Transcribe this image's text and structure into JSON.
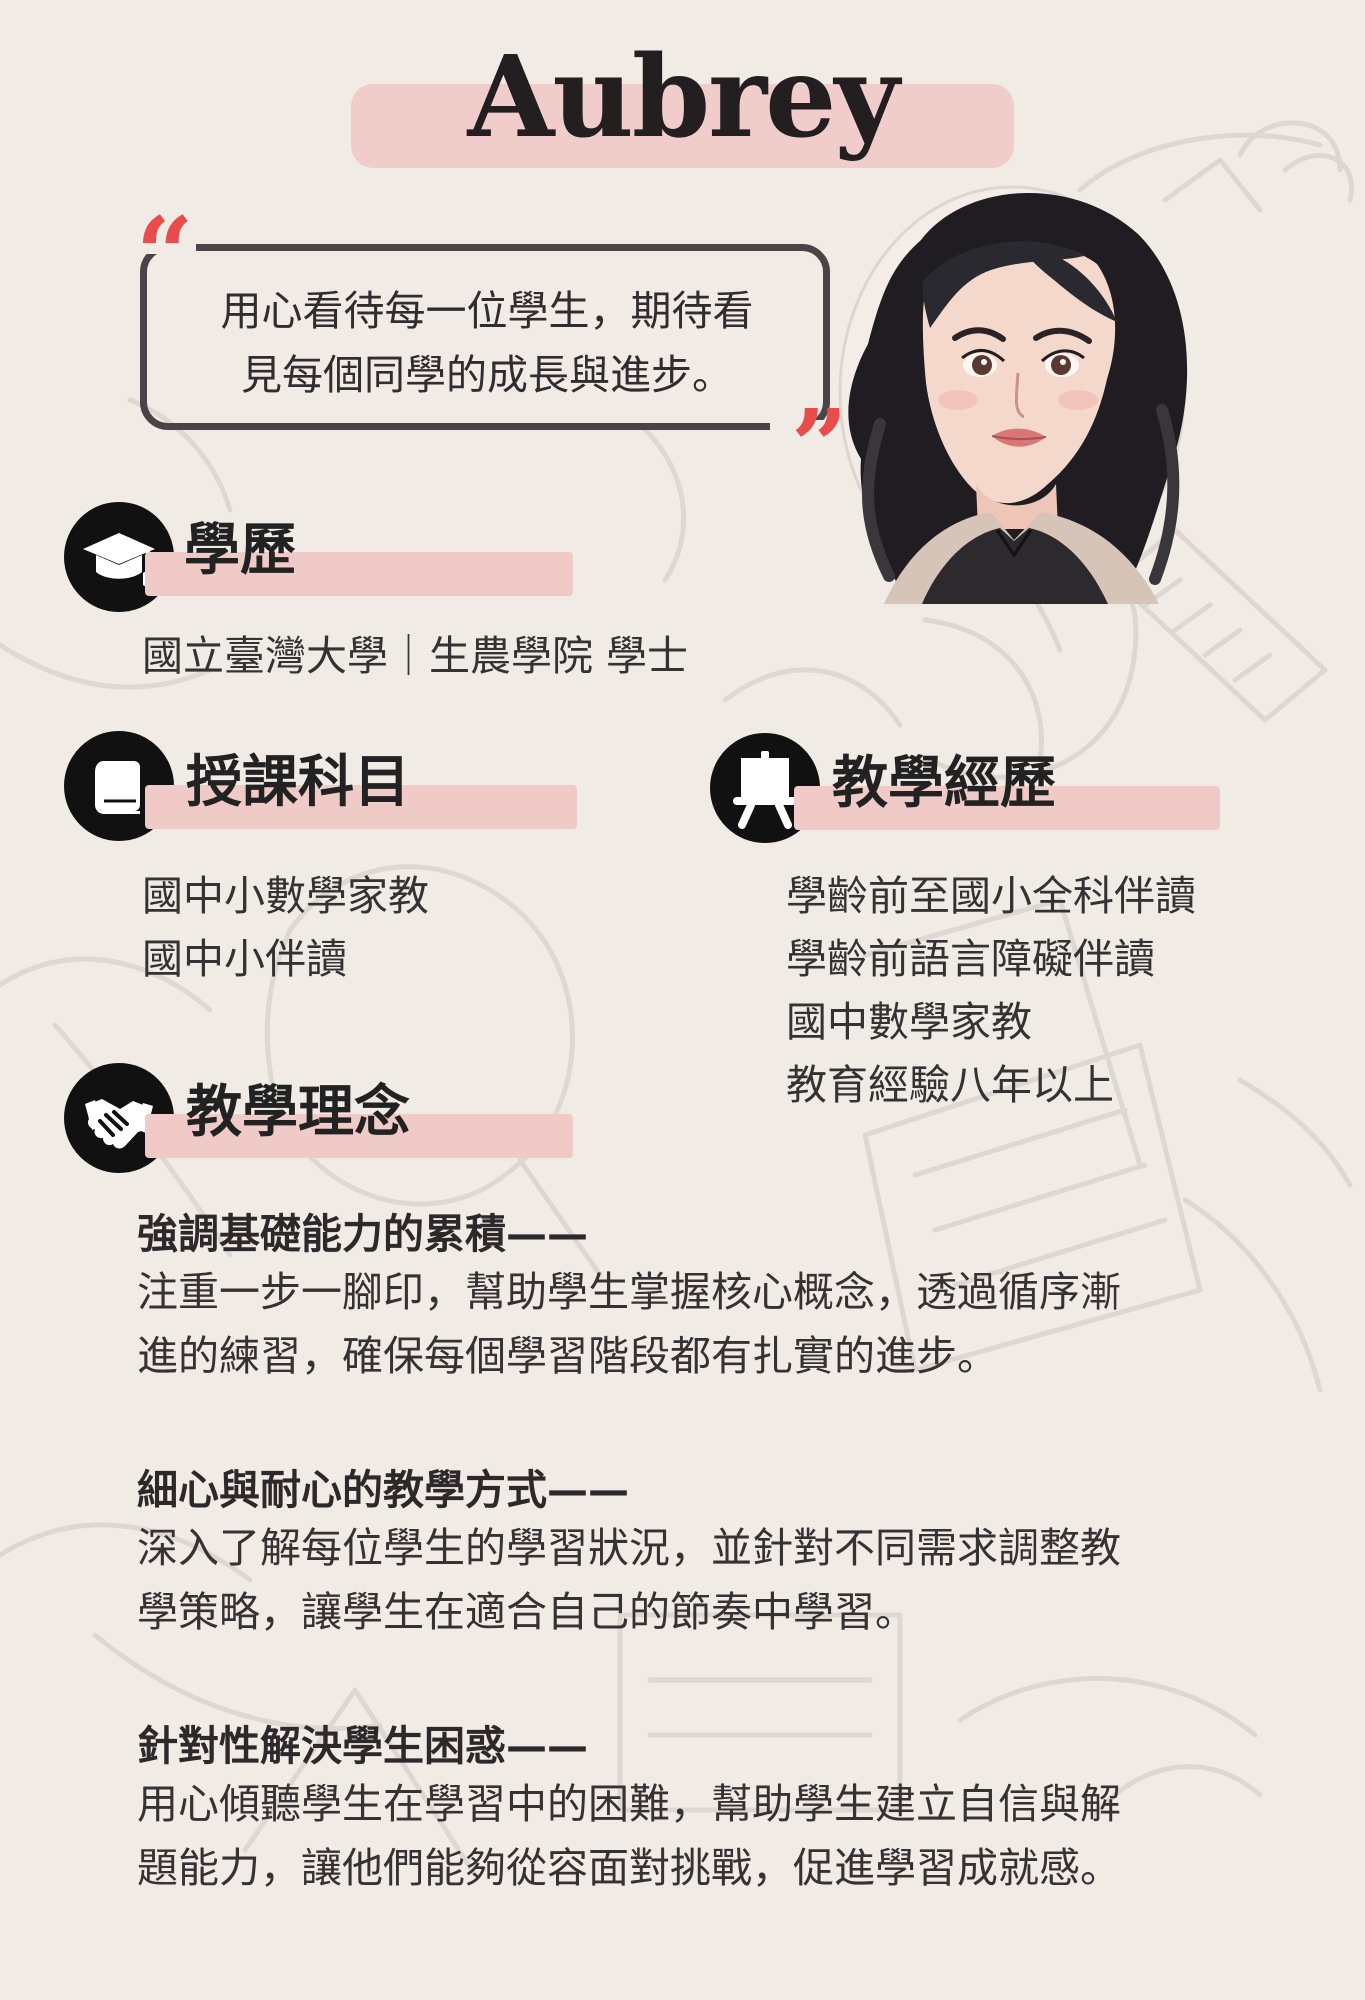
{
  "profile": {
    "name": "Aubrey",
    "quote": "用心看待每一位學生，期待看見每個同學的成長與進步。",
    "quote_lines": [
      "用心看待每一位學生，期待看",
      "見每個同學的成長與進步。"
    ],
    "quote_open": "“",
    "quote_close": "”"
  },
  "education": {
    "title": "學歷",
    "content": "國立臺灣大學｜生農學院 學士",
    "icon": "graduation-cap-icon"
  },
  "subjects": {
    "title": "授課科目",
    "items": [
      "國中小數學家教",
      "國中小伴讀"
    ],
    "icon": "book-icon"
  },
  "experience": {
    "title": "教學經歷",
    "items": [
      "學齡前至國小全科伴讀",
      "學齡前語言障礙伴讀",
      "國中數學家教",
      "教育經驗八年以上"
    ],
    "icon": "presentation-board-icon"
  },
  "philosophy": {
    "title": "教學理念",
    "icon": "handshake-icon",
    "blocks": [
      {
        "heading": "強調基礎能力的累積——",
        "lines": [
          "注重一步一腳印，幫助學生掌握核心概念，透過循序漸",
          "進的練習，確保每個學習階段都有扎實的進步。"
        ]
      },
      {
        "heading": "細心與耐心的教學方式——",
        "lines": [
          "深入了解每位學生的學習狀況，並針對不同需求調整教",
          "學策略，讓學生在適合自己的節奏中學習。"
        ]
      },
      {
        "heading": "針對性解決學生困惑——",
        "lines": [
          "用心傾聽學生在學習中的困難，幫助學生建立自信與解",
          "題能力，讓他們能夠從容面對挑戰，促進學習成就感。"
        ]
      }
    ]
  },
  "colors": {
    "background": "#f1ebe6",
    "accent_pink": "#efcac6",
    "quote_red": "#ea4b4b",
    "dark": "#231f20"
  }
}
